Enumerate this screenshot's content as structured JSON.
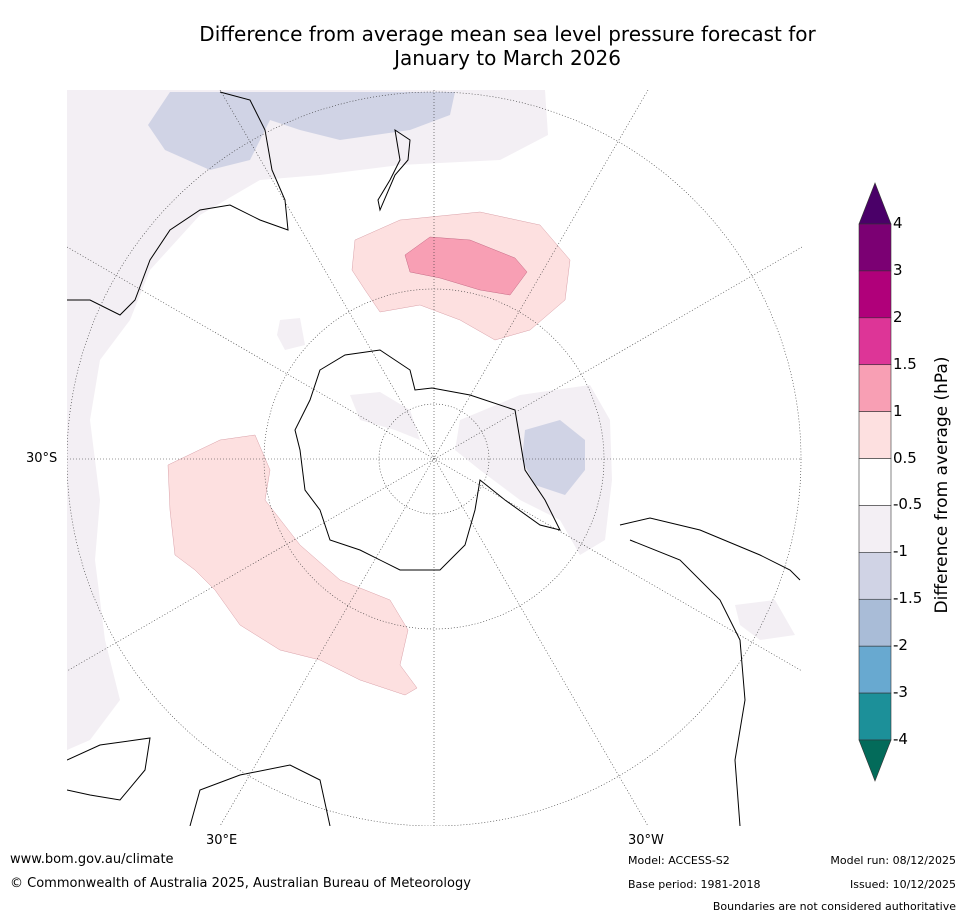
{
  "title_line1": "Difference from average mean sea level pressure forecast for",
  "title_line2": "January to March 2026",
  "map_labels": {
    "lat": "30°S",
    "lon_e": "30°E",
    "lon_w": "30°W"
  },
  "colorbar": {
    "title": "Difference from average (hPa)",
    "ticks": [
      "4",
      "3",
      "2",
      "1.5",
      "1",
      "0.5",
      "-0.5",
      "-1",
      "-1.5",
      "-2",
      "-3",
      "-4"
    ],
    "colors": [
      "#7b0073",
      "#b0007a",
      "#dd3597",
      "#f89fb4",
      "#fde0e0",
      "#ffffff",
      "#f3eff4",
      "#d0d3e5",
      "#a9bcd7",
      "#68a9d0",
      "#1c9099"
    ],
    "over_color": "#4a0068",
    "under_color": "#036b5a"
  },
  "footer": {
    "url": "www.bom.gov.au/climate",
    "copyright": "© Commonwealth of Australia 2025, Australian Bureau of Meteorology",
    "model": "Model: ACCESS-S2",
    "base_period": "Base period: 1981-2018",
    "model_run": "Model run: 08/12/2025",
    "issued": "Issued: 10/12/2025",
    "disclaimer": "Boundaries are not considered authoritative"
  }
}
